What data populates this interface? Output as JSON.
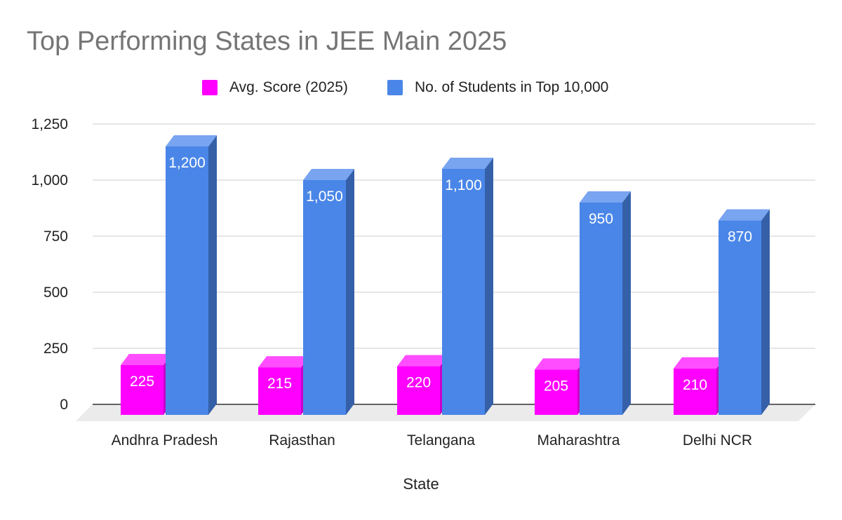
{
  "chart_data": {
    "type": "bar",
    "title": "Top Performing States in JEE Main 2025",
    "xlabel": "State",
    "ylabel": "",
    "categories": [
      "Andhra Pradesh",
      "Rajasthan",
      "Telangana",
      "Maharashtra",
      "Delhi NCR"
    ],
    "series": [
      {
        "name": "Avg. Score (2025)",
        "values": [
          225,
          215,
          220,
          205,
          210
        ],
        "value_labels": [
          "225",
          "215",
          "220",
          "205",
          "210"
        ],
        "color": "#ff00ff",
        "side_color": "#c800c8",
        "top_color": "#ff4dff"
      },
      {
        "name": "No. of Students in Top 10,000",
        "values": [
          1200,
          1050,
          1100,
          950,
          870
        ],
        "value_labels": [
          "1,200",
          "1,050",
          "1,100",
          "950",
          "870"
        ],
        "color": "#4a86e8",
        "side_color": "#3560a8",
        "top_color": "#78a4f0"
      }
    ],
    "y_ticks": [
      0,
      250,
      500,
      750,
      1000,
      1250
    ],
    "y_tick_labels": [
      "0",
      "250",
      "500",
      "750",
      "1,000",
      "1,250"
    ],
    "ylim": [
      0,
      1250
    ],
    "grid": true,
    "legend_position": "top",
    "style": "3d-column"
  }
}
